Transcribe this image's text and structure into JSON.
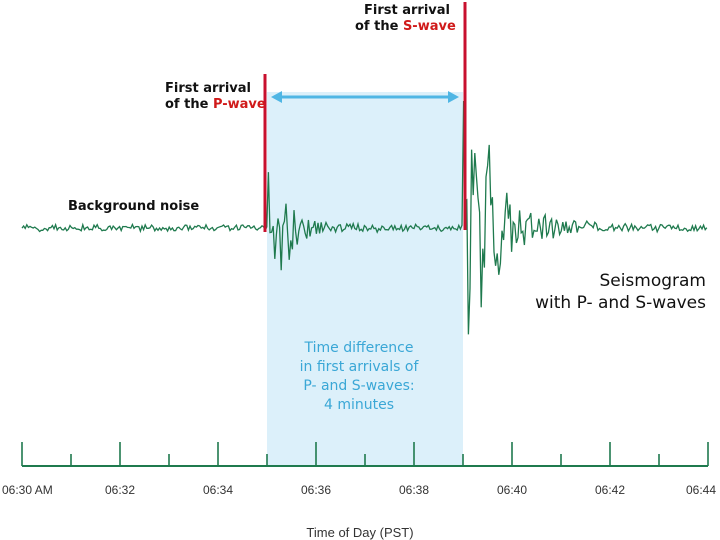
{
  "labels": {
    "background_noise": "Background noise",
    "p_wave_line1": "First arrival",
    "p_wave_line2_prefix": "of the ",
    "p_wave_name": "P-wave",
    "s_wave_line1": "First arrival",
    "s_wave_line2_prefix": "of the ",
    "s_wave_name": "S-wave",
    "time_diff_line1": "Time difference",
    "time_diff_line2": "in first arrivals of",
    "time_diff_line3": "P- and S-waves:",
    "time_diff_line4": "4 minutes",
    "title_line1": "Seismogram",
    "title_line2": "with P- and S-waves",
    "x_axis_title": "Time of Day (PST)"
  },
  "axis": {
    "ticks": [
      "06:30 AM",
      "06:32",
      "06:34",
      "06:36",
      "06:38",
      "06:40",
      "06:42",
      "06:44"
    ]
  },
  "events": {
    "start_minutes": 0,
    "end_minutes": 14,
    "p_arrival_minutes": 5,
    "s_arrival_minutes": 9
  },
  "colors": {
    "trace": "#1f7a4e",
    "arrival_marker": "#c8102e",
    "interval_fill": "#dcf0fa",
    "interval_arrow": "#4fb6e4",
    "interval_text": "#3aa7d6",
    "axis": "#1f7a4e"
  }
}
